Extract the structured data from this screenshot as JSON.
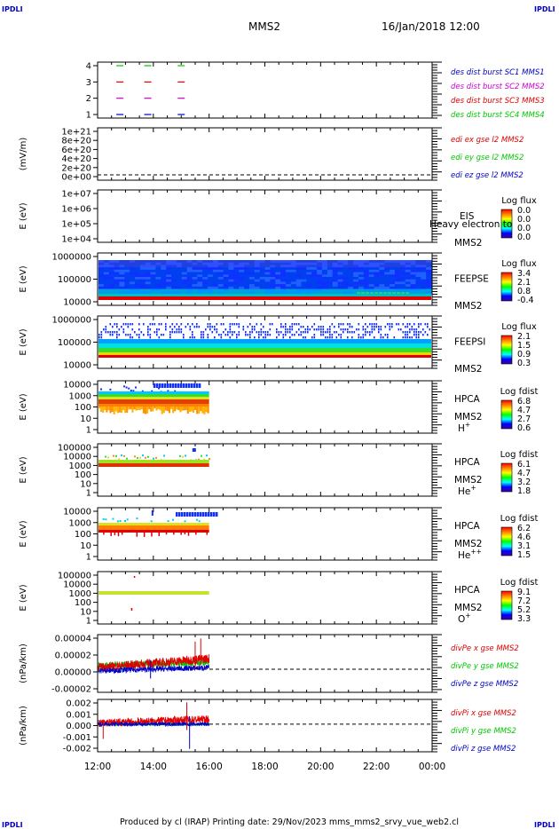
{
  "header": {
    "corner_label": "IPDLI",
    "mission": "MMS2",
    "datetime": "16/Jan/2018 12:00"
  },
  "footer": {
    "text": "Produced by cl (IRAP)   Printing date: 29/Nov/2023   mms_mms2_srvy_vue_web2.cl"
  },
  "colors": {
    "red": "#e00000",
    "green": "#00c800",
    "blue": "#0000c8",
    "magenta": "#d000d0",
    "spectrum_blue": "#1030ff",
    "spectrum_cyan": "#00e0e0",
    "spectrum_green": "#30e030",
    "spectrum_yellow": "#ffe000",
    "spectrum_orange": "#ff9000",
    "spectrum_red": "#e00000"
  },
  "time_axis": {
    "ticks": [
      "12:00",
      "14:00",
      "16:00",
      "18:00",
      "20:00",
      "22:00",
      "00:00"
    ],
    "range_hours": [
      12,
      24
    ]
  },
  "chart_data": [
    {
      "type": "scatter",
      "id": "burst",
      "yticks": [
        "4",
        "3",
        "2",
        "1"
      ],
      "legend": [
        {
          "text": "des dist burst SC1 MMS1",
          "color": "#0000c8"
        },
        {
          "text": "des dist burst SC2 MMS2",
          "color": "#d000d0"
        },
        {
          "text": "des dist burst SC3 MMS3",
          "color": "#e00000"
        },
        {
          "text": "des dist burst SC4 MMS4",
          "color": "#00c800"
        }
      ],
      "series": [
        {
          "y": 4,
          "color": "#00c800",
          "x_hours": [
            12.8,
            13.8,
            15.0
          ]
        },
        {
          "y": 3,
          "color": "#e00000",
          "x_hours": [
            12.8,
            13.8,
            15.0
          ]
        },
        {
          "y": 2,
          "color": "#d000d0",
          "x_hours": [
            12.8,
            13.8,
            15.0
          ]
        },
        {
          "y": 1,
          "color": "#0000c8",
          "x_hours": [
            12.8,
            13.8,
            15.0
          ]
        }
      ]
    },
    {
      "type": "line",
      "id": "edi",
      "ylabel": "(mV/m)",
      "yticks": [
        "1e+21",
        "8e+20",
        "6e+20",
        "4e+20",
        "2e+20",
        "0e+00"
      ],
      "legend": [
        {
          "text": "edi ex gse l2 MMS2",
          "color": "#e00000"
        },
        {
          "text": "edi ey gse l2 MMS2",
          "color": "#00c800"
        },
        {
          "text": "edi ez gse l2 MMS2",
          "color": "#0000c8"
        }
      ]
    },
    {
      "type": "heatmap",
      "id": "eis",
      "ylabel": "E (eV)",
      "yticks": [
        "1e+07",
        "1e+06",
        "1e+05",
        "1e+04"
      ],
      "instrument": "EIS",
      "overlay": "Heavy electron to",
      "spacecraft": "MMS2",
      "colorbar_title": "Log flux",
      "colorbar_ticks": [
        "0.0",
        "0.0",
        "0.0",
        "0.0"
      ]
    },
    {
      "type": "heatmap",
      "id": "feepse",
      "ylabel": "E (eV)",
      "yticks": [
        "1000000",
        "100000",
        "10000"
      ],
      "instrument": "FEEPSE",
      "spacecraft": "MMS2",
      "colorbar_title": "Log flux",
      "colorbar_ticks": [
        "3.4",
        "2.1",
        "0.8",
        "-0.4"
      ]
    },
    {
      "type": "heatmap",
      "id": "feepsi",
      "ylabel": "E (eV)",
      "yticks": [
        "1000000",
        "100000",
        "10000"
      ],
      "instrument": "FEEPSI",
      "spacecraft": "MMS2",
      "colorbar_title": "Log flux",
      "colorbar_ticks": [
        "2.1",
        "1.5",
        "0.9",
        "0.3"
      ]
    },
    {
      "type": "heatmap",
      "id": "hpca_h",
      "ylabel": "E (eV)",
      "yticks": [
        "10000",
        "1000",
        "100",
        "10",
        "1"
      ],
      "instrument": "HPCA",
      "spacecraft": "MMS2",
      "species": "H",
      "species_sup": "+",
      "colorbar_title": "Log fdist",
      "colorbar_ticks": [
        "6.8",
        "4.7",
        "2.7",
        "0.6"
      ]
    },
    {
      "type": "heatmap",
      "id": "hpca_he",
      "ylabel": "E (eV)",
      "yticks": [
        "100000",
        "10000",
        "1000",
        "100",
        "10",
        "1"
      ],
      "instrument": "HPCA",
      "spacecraft": "MMS2",
      "species": "He",
      "species_sup": "+",
      "colorbar_title": "Log fdist",
      "colorbar_ticks": [
        "6.1",
        "4.7",
        "3.2",
        "1.8"
      ]
    },
    {
      "type": "heatmap",
      "id": "hpca_hepp",
      "ylabel": "E (eV)",
      "yticks": [
        "10000",
        "1000",
        "100",
        "10",
        "1"
      ],
      "instrument": "HPCA",
      "spacecraft": "MMS2",
      "species": "He",
      "species_sup": "++",
      "colorbar_title": "Log fdist",
      "colorbar_ticks": [
        "6.2",
        "4.6",
        "3.1",
        "1.5"
      ]
    },
    {
      "type": "heatmap",
      "id": "hpca_o",
      "ylabel": "E (eV)",
      "yticks": [
        "100000",
        "10000",
        "1000",
        "100",
        "10",
        "1"
      ],
      "instrument": "HPCA",
      "spacecraft": "MMS2",
      "species": "O",
      "species_sup": "+",
      "colorbar_title": "Log fdist",
      "colorbar_ticks": [
        "9.1",
        "7.2",
        "5.2",
        "3.3"
      ]
    },
    {
      "type": "line",
      "id": "divpe",
      "ylabel": "(nPa/km)",
      "yticks": [
        "0.00004",
        "0.00002",
        "0.00000",
        "-0.00002"
      ],
      "yrange": [
        -3e-05,
        4.5e-05
      ],
      "legend": [
        {
          "text": "divPe x gse MMS2",
          "color": "#e00000"
        },
        {
          "text": "divPe y gse MMS2",
          "color": "#00c800"
        },
        {
          "text": "divPe z gse MMS2",
          "color": "#0000c8"
        }
      ]
    },
    {
      "type": "line",
      "id": "divpi",
      "ylabel": "(nPa/km)",
      "yticks": [
        "0.002",
        "0.001",
        "0.000",
        "-0.001",
        "-0.002"
      ],
      "yrange": [
        -0.0028,
        0.0025
      ],
      "legend": [
        {
          "text": "divPi x gse MMS2",
          "color": "#e00000"
        },
        {
          "text": "divPi y gse MMS2",
          "color": "#00c800"
        },
        {
          "text": "divPi z gse MMS2",
          "color": "#0000c8"
        }
      ]
    }
  ]
}
